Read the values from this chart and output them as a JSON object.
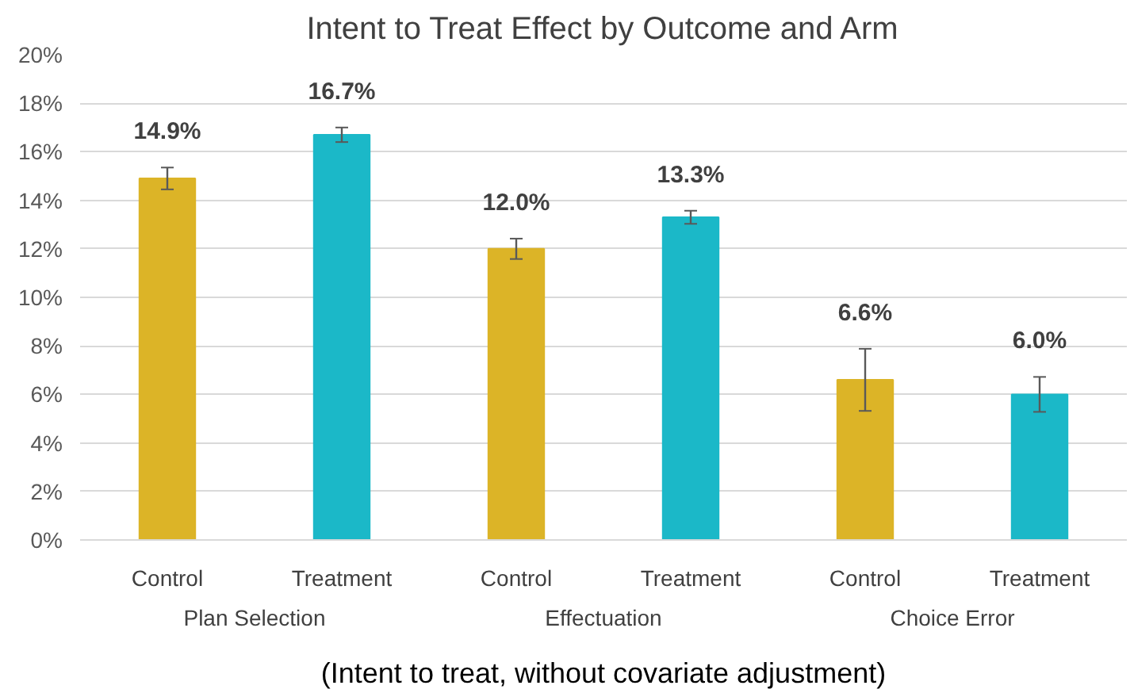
{
  "chart_data": {
    "type": "bar",
    "title": "Intent to Treat Effect by Outcome and Arm",
    "xlabel": "(Intent to treat, without covariate adjustment)",
    "categories": [
      "Control",
      "Treatment",
      "Control",
      "Treatment",
      "Control",
      "Treatment"
    ],
    "values": [
      14.9,
      16.7,
      12.0,
      13.3,
      6.6,
      6.0
    ],
    "colors": [
      "#dcb427",
      "#1bb8c8",
      "#dcb427",
      "#1bb8c8",
      "#dcb427",
      "#1bb8c8"
    ],
    "errors": [
      0.45,
      0.3,
      0.42,
      0.27,
      1.28,
      0.72
    ],
    "value_labels": [
      "14.9%",
      "16.7%",
      "12.0%",
      "13.3%",
      "6.6%",
      "6.0%"
    ],
    "annotations": [
      "Plan Selection",
      "Effectuation",
      "Choice Error"
    ],
    "ylim": [
      0,
      20
    ],
    "yticks": [
      {
        "value": 0,
        "label": "0%"
      },
      {
        "value": 2,
        "label": "2%"
      },
      {
        "value": 4,
        "label": "4%"
      },
      {
        "value": 6,
        "label": "6%"
      },
      {
        "value": 8,
        "label": "8%"
      },
      {
        "value": 10,
        "label": "10%"
      },
      {
        "value": 12,
        "label": "12%"
      },
      {
        "value": 14,
        "label": "14%"
      },
      {
        "value": 16,
        "label": "16%"
      },
      {
        "value": 18,
        "label": "18%"
      },
      {
        "value": 20,
        "label": "20%"
      }
    ],
    "grid": "y"
  }
}
